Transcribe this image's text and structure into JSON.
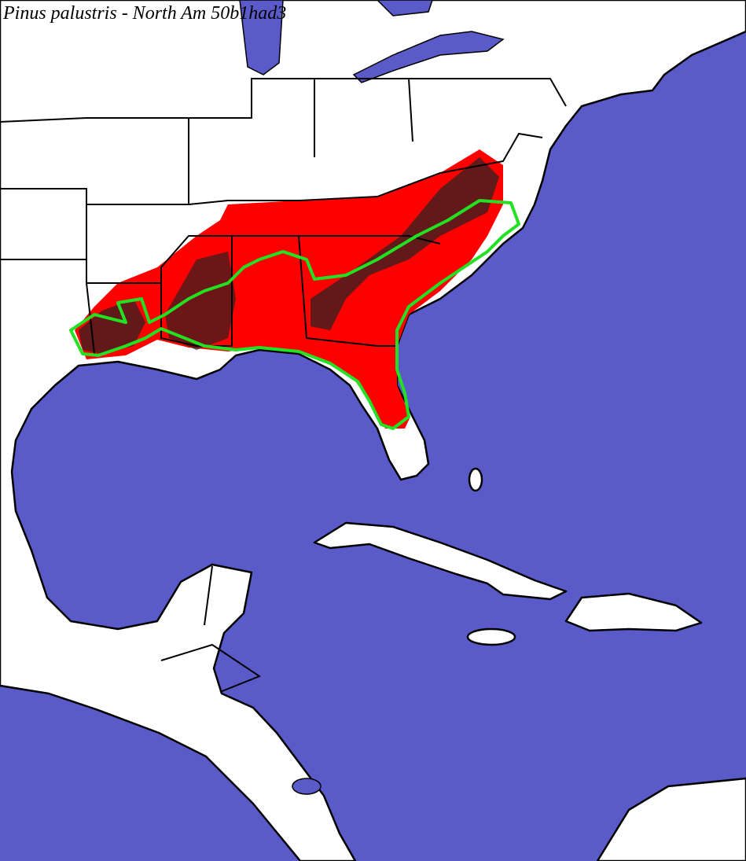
{
  "title": "Pinus palustris - North Am 50b1had3"
}
